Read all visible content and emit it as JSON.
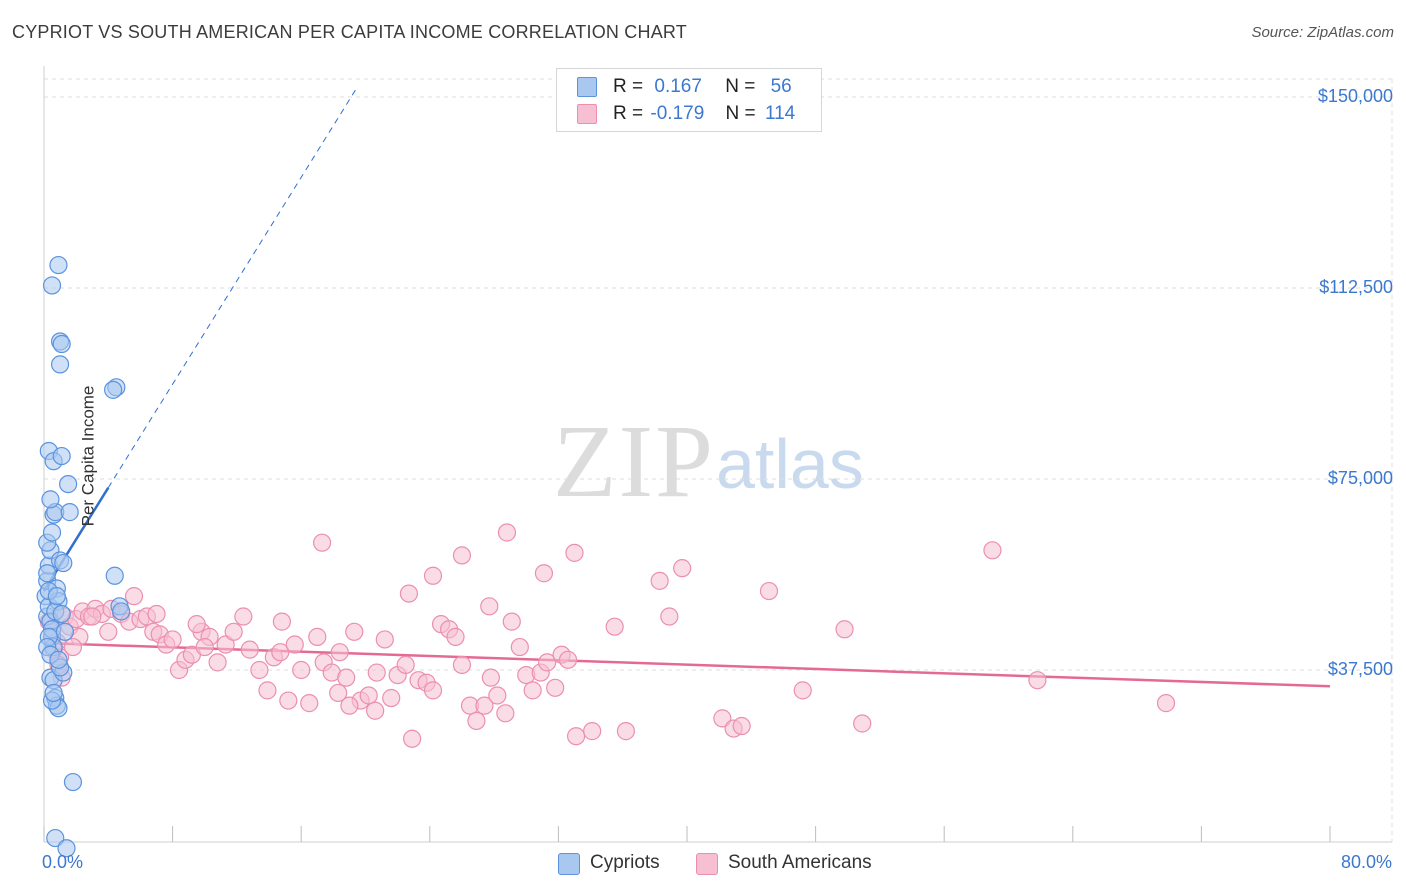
{
  "header": {
    "title": "CYPRIOT VS SOUTH AMERICAN PER CAPITA INCOME CORRELATION CHART",
    "source": "Source: ZipAtlas.com"
  },
  "watermark": {
    "zip": "ZIP",
    "atlas": "atlas"
  },
  "legend": {
    "rows": [
      {
        "r_label": "R =",
        "r_value": "0.167",
        "n_label": "N =",
        "n_value": "56"
      },
      {
        "r_label": "R =",
        "r_value": "-0.179",
        "n_label": "N =",
        "n_value": "114"
      }
    ]
  },
  "colors": {
    "cypriot_fill": "#a9c8f0",
    "cypriot_stroke": "#5b93de",
    "cypriot_line": "#2f6fd0",
    "south_fill": "#f6c0d2",
    "south_stroke": "#ec8fae",
    "south_line": "#e46a95",
    "tick_text": "#3b78d0",
    "grid": "#dedede"
  },
  "chart_data": {
    "type": "scatter",
    "title": "CYPRIOT VS SOUTH AMERICAN PER CAPITA INCOME CORRELATION CHART",
    "xlabel": "",
    "ylabel": "Per Capita Income",
    "xlim": [
      0,
      80
    ],
    "ylim": [
      0,
      157000
    ],
    "x_tick_labels": [
      "0.0%",
      "80.0%"
    ],
    "y_ticks": [
      {
        "value": 150000,
        "label": "$150,000"
      },
      {
        "value": 112500,
        "label": "$112,500"
      },
      {
        "value": 75000,
        "label": "$75,000"
      },
      {
        "value": 37500,
        "label": "$37,500"
      }
    ],
    "series": [
      {
        "name": "Cypriots",
        "r": 0.167,
        "n": 56,
        "trend": {
          "x0": 0.0,
          "y0": 53000,
          "x1": 4.0,
          "y1": 73300,
          "dash_to_x": 19.5,
          "dash_to_y": 152000
        },
        "points": [
          [
            0.1,
            52000
          ],
          [
            0.2,
            48000
          ],
          [
            0.3,
            50000
          ],
          [
            0.2,
            55000
          ],
          [
            0.4,
            47000
          ],
          [
            0.5,
            44000
          ],
          [
            0.6,
            42000
          ],
          [
            0.3,
            58000
          ],
          [
            0.4,
            61000
          ],
          [
            0.2,
            62500
          ],
          [
            0.5,
            64500
          ],
          [
            0.6,
            68000
          ],
          [
            0.7,
            68500
          ],
          [
            0.4,
            71000
          ],
          [
            0.3,
            80500
          ],
          [
            0.6,
            78500
          ],
          [
            1.1,
            79500
          ],
          [
            1.5,
            74000
          ],
          [
            1.6,
            68500
          ],
          [
            1.0,
            59000
          ],
          [
            1.2,
            58500
          ],
          [
            0.8,
            53500
          ],
          [
            0.9,
            51000
          ],
          [
            0.7,
            49000
          ],
          [
            0.5,
            45500
          ],
          [
            0.3,
            44000
          ],
          [
            0.4,
            36000
          ],
          [
            0.6,
            35500
          ],
          [
            1.2,
            37000
          ],
          [
            1.0,
            38000
          ],
          [
            0.7,
            32000
          ],
          [
            0.8,
            30500
          ],
          [
            0.9,
            30000
          ],
          [
            0.5,
            31500
          ],
          [
            4.5,
            93000
          ],
          [
            4.3,
            92500
          ],
          [
            1.0,
            102000
          ],
          [
            1.1,
            101500
          ],
          [
            1.0,
            97500
          ],
          [
            0.9,
            117000
          ],
          [
            0.5,
            113000
          ],
          [
            4.7,
            50000
          ],
          [
            4.8,
            49000
          ],
          [
            4.4,
            56000
          ],
          [
            1.8,
            15500
          ],
          [
            0.7,
            4500
          ],
          [
            1.4,
            2500
          ],
          [
            0.2,
            56500
          ],
          [
            0.3,
            53000
          ],
          [
            0.8,
            52000
          ],
          [
            1.1,
            48500
          ],
          [
            0.2,
            42000
          ],
          [
            0.4,
            40500
          ],
          [
            1.3,
            45000
          ],
          [
            0.6,
            33000
          ],
          [
            0.9,
            39500
          ]
        ]
      },
      {
        "name": "South Americans",
        "r": -0.179,
        "n": 114,
        "trend": {
          "x0": 0.0,
          "y0": 42800,
          "x1": 80.0,
          "y1": 34300
        },
        "points": [
          [
            0.3,
            47000
          ],
          [
            0.5,
            45000
          ],
          [
            0.8,
            43000
          ],
          [
            1.0,
            40000
          ],
          [
            1.3,
            48000
          ],
          [
            1.6,
            46000
          ],
          [
            2.0,
            47500
          ],
          [
            2.4,
            49000
          ],
          [
            2.8,
            48000
          ],
          [
            3.2,
            49500
          ],
          [
            3.6,
            48500
          ],
          [
            4.2,
            49500
          ],
          [
            4.8,
            48500
          ],
          [
            5.3,
            47000
          ],
          [
            5.6,
            52000
          ],
          [
            6.0,
            47500
          ],
          [
            6.4,
            48000
          ],
          [
            6.8,
            45000
          ],
          [
            7.2,
            44500
          ],
          [
            7.6,
            42500
          ],
          [
            8.0,
            43500
          ],
          [
            8.4,
            37500
          ],
          [
            8.8,
            39500
          ],
          [
            9.2,
            40500
          ],
          [
            9.8,
            45000
          ],
          [
            10.3,
            44000
          ],
          [
            10.8,
            39000
          ],
          [
            11.3,
            42500
          ],
          [
            11.8,
            45000
          ],
          [
            12.4,
            48000
          ],
          [
            12.8,
            41500
          ],
          [
            13.4,
            37500
          ],
          [
            13.9,
            33500
          ],
          [
            14.3,
            40000
          ],
          [
            14.7,
            41000
          ],
          [
            15.2,
            31500
          ],
          [
            15.6,
            42500
          ],
          [
            16.0,
            37500
          ],
          [
            16.5,
            31000
          ],
          [
            17.0,
            44000
          ],
          [
            17.4,
            39000
          ],
          [
            17.9,
            37000
          ],
          [
            18.4,
            41000
          ],
          [
            18.8,
            36000
          ],
          [
            19.3,
            45000
          ],
          [
            19.7,
            31500
          ],
          [
            20.2,
            32500
          ],
          [
            20.7,
            37000
          ],
          [
            21.2,
            43500
          ],
          [
            21.6,
            32000
          ],
          [
            22.0,
            36500
          ],
          [
            22.5,
            38500
          ],
          [
            22.9,
            24000
          ],
          [
            23.3,
            35500
          ],
          [
            23.8,
            35000
          ],
          [
            24.2,
            33500
          ],
          [
            24.7,
            46500
          ],
          [
            25.2,
            45500
          ],
          [
            25.6,
            44000
          ],
          [
            26.0,
            38500
          ],
          [
            26.5,
            30500
          ],
          [
            26.9,
            27500
          ],
          [
            27.4,
            30500
          ],
          [
            27.8,
            36000
          ],
          [
            28.2,
            32500
          ],
          [
            28.7,
            29000
          ],
          [
            29.1,
            47000
          ],
          [
            29.6,
            42000
          ],
          [
            30.0,
            36500
          ],
          [
            30.4,
            33500
          ],
          [
            30.9,
            37000
          ],
          [
            31.3,
            39000
          ],
          [
            31.8,
            34000
          ],
          [
            32.2,
            40500
          ],
          [
            32.6,
            39500
          ],
          [
            33.1,
            24500
          ],
          [
            34.1,
            25500
          ],
          [
            35.5,
            46000
          ],
          [
            36.2,
            25500
          ],
          [
            38.3,
            55000
          ],
          [
            38.9,
            48000
          ],
          [
            39.7,
            57500
          ],
          [
            42.2,
            28000
          ],
          [
            42.9,
            26000
          ],
          [
            43.4,
            26500
          ],
          [
            45.1,
            53000
          ],
          [
            47.2,
            33500
          ],
          [
            49.8,
            45500
          ],
          [
            50.9,
            27000
          ],
          [
            59.0,
            61000
          ],
          [
            61.8,
            35500
          ],
          [
            69.8,
            31000
          ],
          [
            17.3,
            62500
          ],
          [
            24.2,
            56000
          ],
          [
            26.0,
            60000
          ],
          [
            27.7,
            50000
          ],
          [
            28.8,
            64500
          ],
          [
            31.1,
            56500
          ],
          [
            33.0,
            60500
          ],
          [
            22.7,
            52500
          ],
          [
            18.3,
            33000
          ],
          [
            19.0,
            30500
          ],
          [
            20.6,
            29500
          ],
          [
            14.8,
            47000
          ],
          [
            10.0,
            42000
          ],
          [
            9.5,
            46500
          ],
          [
            7.0,
            48500
          ],
          [
            3.0,
            48000
          ],
          [
            4.0,
            45000
          ],
          [
            2.2,
            44000
          ],
          [
            1.8,
            42000
          ],
          [
            0.9,
            38500
          ],
          [
            1.1,
            36000
          ],
          [
            0.6,
            41500
          ]
        ]
      }
    ]
  },
  "bottom_legend": {
    "items": [
      {
        "label": "Cypriots"
      },
      {
        "label": "South Americans"
      }
    ]
  }
}
